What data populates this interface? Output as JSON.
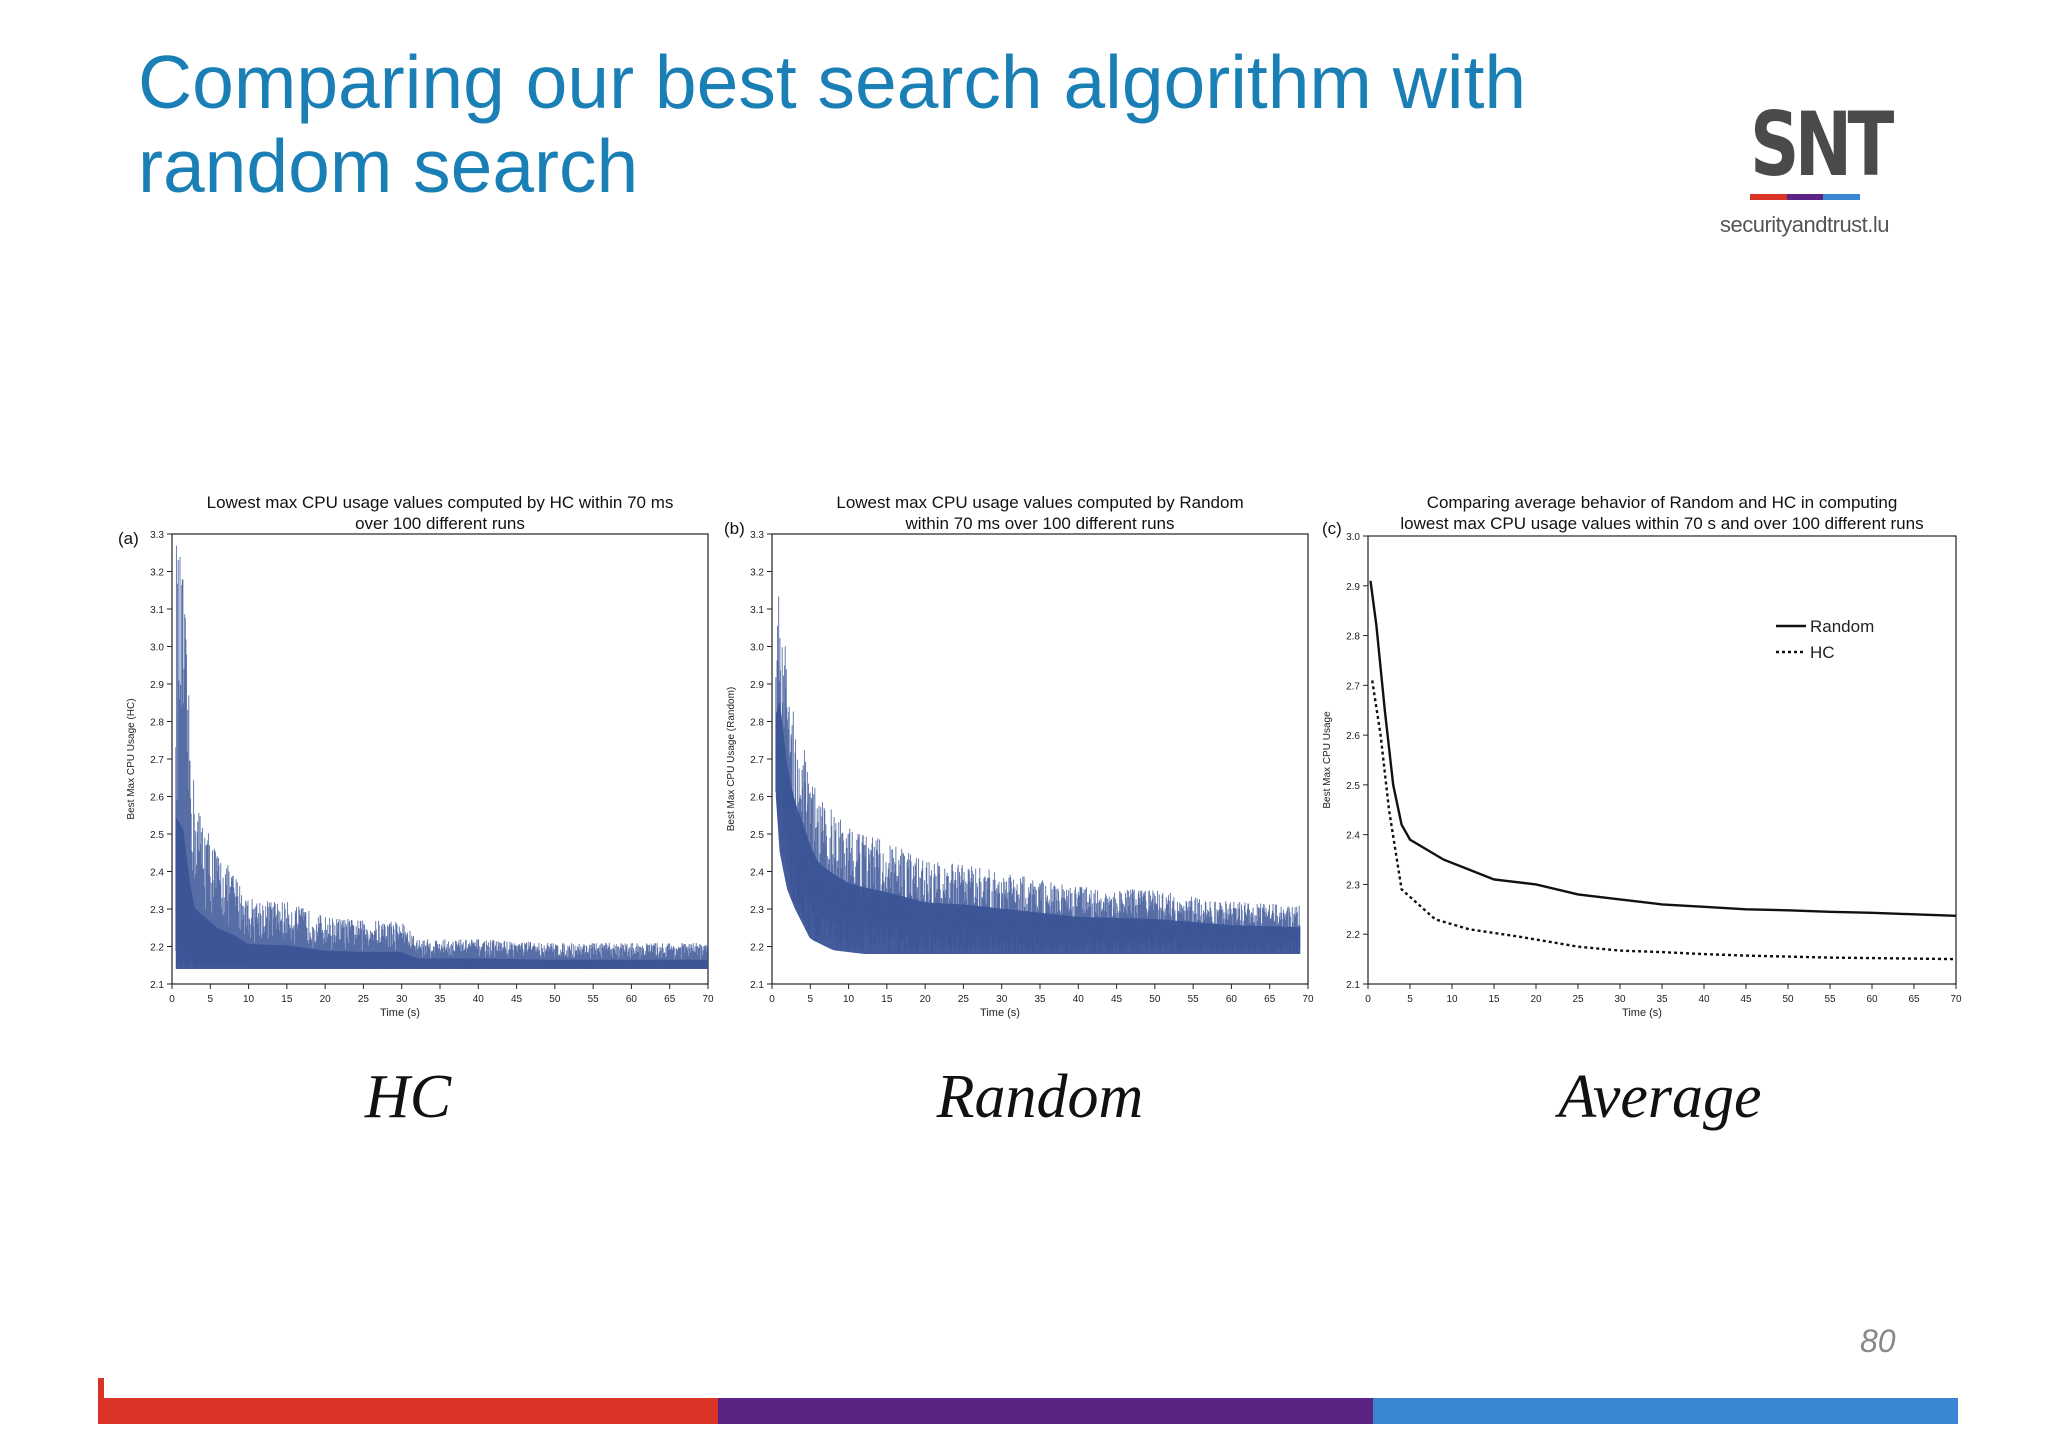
{
  "slide": {
    "title": "Comparing our best search algorithm with random search",
    "page_number": "80"
  },
  "logo": {
    "mark": "SNT",
    "url": "securityandtrust.lu",
    "bar_colors": [
      "#d93425",
      "#5b2484",
      "#3a86d4"
    ]
  },
  "captions": [
    "HC",
    "Random",
    "Average"
  ],
  "footer": {
    "colors": [
      "#d93425",
      "#5b2484",
      "#3a86d4"
    ]
  },
  "colors": {
    "series_fill": "#3a5397",
    "line": "#111111",
    "title": "#1a7fb5"
  },
  "chart_data": [
    {
      "type": "line",
      "panel_label": "(a)",
      "title_lines": [
        "Lowest max CPU usage values computed by HC within 70 ms",
        "over 100 different runs"
      ],
      "xlabel": "Time (s)",
      "ylabel": "Best Max CPU Usage (HC)",
      "xlim": [
        0,
        70
      ],
      "ylim": [
        2.1,
        3.3
      ],
      "xticks": [
        0,
        5,
        10,
        15,
        20,
        25,
        30,
        35,
        40,
        45,
        50,
        55,
        60,
        65,
        70
      ],
      "yticks": [
        2.1,
        2.2,
        2.3,
        2.4,
        2.5,
        2.6,
        2.7,
        2.8,
        2.9,
        3.0,
        3.1,
        3.2,
        3.3
      ],
      "series": [
        {
          "fill": "#3a5397",
          "lower": [
            [
              0.5,
              2.14
            ],
            [
              70,
              2.14
            ]
          ],
          "upper": [
            [
              0.5,
              3.3
            ],
            [
              1.5,
              3.2
            ],
            [
              2,
              2.95
            ],
            [
              2.5,
              2.75
            ],
            [
              3,
              2.6
            ],
            [
              4,
              2.55
            ],
            [
              6,
              2.45
            ],
            [
              8,
              2.4
            ],
            [
              10,
              2.33
            ],
            [
              15,
              2.32
            ],
            [
              20,
              2.28
            ],
            [
              25,
              2.27
            ],
            [
              30,
              2.27
            ],
            [
              32,
              2.22
            ],
            [
              40,
              2.22
            ],
            [
              50,
              2.21
            ],
            [
              60,
              2.21
            ],
            [
              70,
              2.21
            ]
          ]
        }
      ]
    },
    {
      "type": "line",
      "panel_label": "(b)",
      "title_lines": [
        "Lowest max CPU usage values computed by Random",
        "within 70 ms over 100 different runs"
      ],
      "xlabel": "Time (s)",
      "ylabel": "Best Max CPU Usage (Random)",
      "xlim": [
        0,
        70
      ],
      "ylim": [
        2.1,
        3.3
      ],
      "xticks": [
        0,
        5,
        10,
        15,
        20,
        25,
        30,
        35,
        40,
        45,
        50,
        55,
        60,
        65,
        70
      ],
      "yticks": [
        2.1,
        2.2,
        2.3,
        2.4,
        2.5,
        2.6,
        2.7,
        2.8,
        2.9,
        3.0,
        3.1,
        3.2,
        3.3
      ],
      "series": [
        {
          "fill": "#3a5397",
          "lower": [
            [
              0.5,
              2.6
            ],
            [
              1,
              2.45
            ],
            [
              2,
              2.35
            ],
            [
              3,
              2.3
            ],
            [
              5,
              2.22
            ],
            [
              8,
              2.19
            ],
            [
              12,
              2.18
            ],
            [
              20,
              2.18
            ],
            [
              30,
              2.18
            ],
            [
              40,
              2.18
            ],
            [
              50,
              2.18
            ],
            [
              60,
              2.18
            ],
            [
              69,
              2.18
            ]
          ],
          "upper": [
            [
              0.5,
              3.0
            ],
            [
              1,
              3.19
            ],
            [
              2,
              2.95
            ],
            [
              3,
              2.82
            ],
            [
              4,
              2.75
            ],
            [
              6,
              2.6
            ],
            [
              10,
              2.52
            ],
            [
              15,
              2.48
            ],
            [
              20,
              2.43
            ],
            [
              25,
              2.42
            ],
            [
              30,
              2.4
            ],
            [
              35,
              2.38
            ],
            [
              40,
              2.36
            ],
            [
              50,
              2.35
            ],
            [
              60,
              2.32
            ],
            [
              69,
              2.31
            ]
          ]
        }
      ]
    },
    {
      "type": "line",
      "panel_label": "(c)",
      "title_lines": [
        "Comparing average behavior of Random and HC in computing",
        "lowest max CPU usage values within 70 s and over 100 different runs"
      ],
      "xlabel": "Time (s)",
      "ylabel": "Best Max CPU Usage",
      "xlim": [
        0,
        70
      ],
      "ylim": [
        2.1,
        3.0
      ],
      "xticks": [
        0,
        5,
        10,
        15,
        20,
        25,
        30,
        35,
        40,
        45,
        50,
        55,
        60,
        65,
        70
      ],
      "yticks": [
        2.1,
        2.2,
        2.3,
        2.4,
        2.5,
        2.6,
        2.7,
        2.8,
        2.9,
        3.0
      ],
      "legend_position": "top-right",
      "series": [
        {
          "name": "Random",
          "style": "solid",
          "points": [
            [
              0.3,
              2.91
            ],
            [
              1,
              2.82
            ],
            [
              2,
              2.65
            ],
            [
              3,
              2.5
            ],
            [
              4,
              2.42
            ],
            [
              5,
              2.39
            ],
            [
              7,
              2.37
            ],
            [
              9,
              2.35
            ],
            [
              12,
              2.33
            ],
            [
              15,
              2.31
            ],
            [
              20,
              2.3
            ],
            [
              25,
              2.28
            ],
            [
              30,
              2.27
            ],
            [
              35,
              2.26
            ],
            [
              40,
              2.255
            ],
            [
              45,
              2.25
            ],
            [
              50,
              2.248
            ],
            [
              55,
              2.245
            ],
            [
              60,
              2.243
            ],
            [
              65,
              2.24
            ],
            [
              70,
              2.237
            ]
          ]
        },
        {
          "name": "HC",
          "style": "dotted",
          "points": [
            [
              0.5,
              2.71
            ],
            [
              1.5,
              2.6
            ],
            [
              2.5,
              2.45
            ],
            [
              4,
              2.29
            ],
            [
              6,
              2.26
            ],
            [
              8,
              2.23
            ],
            [
              12,
              2.21
            ],
            [
              18,
              2.195
            ],
            [
              25,
              2.175
            ],
            [
              30,
              2.167
            ],
            [
              35,
              2.164
            ],
            [
              40,
              2.16
            ],
            [
              45,
              2.157
            ],
            [
              50,
              2.155
            ],
            [
              55,
              2.153
            ],
            [
              60,
              2.152
            ],
            [
              65,
              2.151
            ],
            [
              70,
              2.15
            ]
          ]
        }
      ]
    }
  ]
}
